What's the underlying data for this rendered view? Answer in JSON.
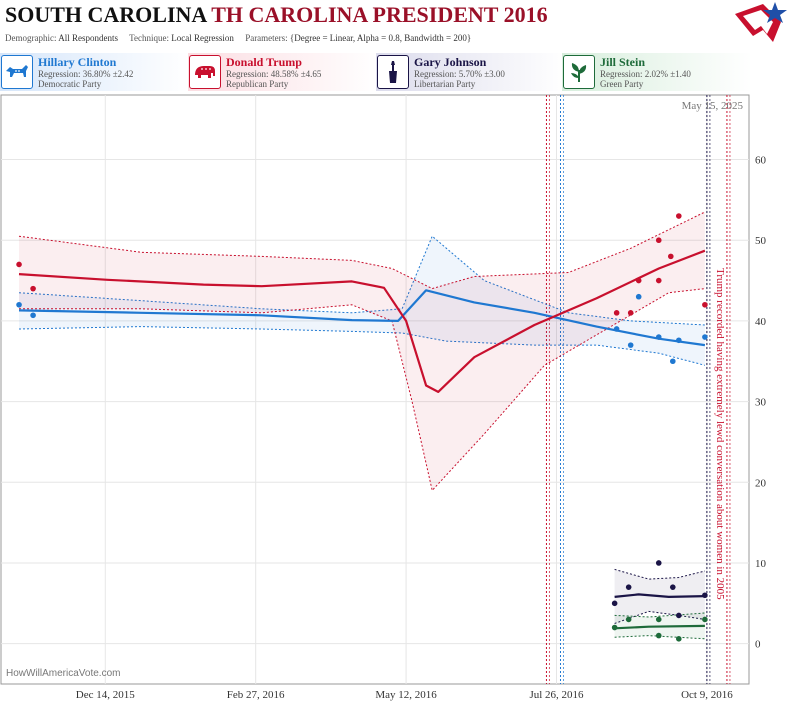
{
  "title": {
    "state": "SOUTH CAROLINA",
    "race": "TH CAROLINA PRESIDENT 2016"
  },
  "params": {
    "demographic_label": "Demographic:",
    "demographic": "All Respondents",
    "technique_label": "Technique:",
    "technique": "Local Regression",
    "parameters_label": "Parameters:",
    "parameters": "{Degree = Linear, Alpha = 0.8, Bandwidth = 200}"
  },
  "candidates": [
    {
      "name": "Hillary Clinton",
      "regression": "Regression: 36.80% ±2.42",
      "party": "Democratic Party",
      "color": "#1f78d1",
      "icon": "donkey-icon"
    },
    {
      "name": "Donald Trump",
      "regression": "Regression: 48.58% ±4.65",
      "party": "Republican Party",
      "color": "#c8102e",
      "icon": "elephant-icon"
    },
    {
      "name": "Gary Johnson",
      "regression": "Regression: 5.70% ±3.00",
      "party": "Libertarian Party",
      "color": "#1a1446",
      "icon": "liberty-torch-icon"
    },
    {
      "name": "Jill Stein",
      "regression": "Regression: 2.02% ±1.40",
      "party": "Green Party",
      "color": "#1e6b3a",
      "icon": "leaf-icon"
    }
  ],
  "datestamp": "May 15, 2025",
  "credit": "HowWillAmericaVote.com",
  "chart_data": {
    "type": "line",
    "x_ticks": [
      "Dec 14, 2015",
      "Feb 27, 2016",
      "May 12, 2016",
      "Jul 26, 2016",
      "Oct 9, 2016"
    ],
    "x_range": [
      "2015-10-23",
      "2016-10-30"
    ],
    "y_ticks": [
      0,
      10,
      20,
      30,
      40,
      50,
      60
    ],
    "ylim": [
      -5,
      68
    ],
    "grid": true,
    "series": [
      {
        "name": "Hillary Clinton",
        "color": "#1f78d1",
        "line": [
          [
            "2015-11-01",
            41.3
          ],
          [
            "2016-01-01",
            41.0
          ],
          [
            "2016-03-01",
            40.7
          ],
          [
            "2016-04-15",
            40.1
          ],
          [
            "2016-05-08",
            40.0
          ],
          [
            "2016-05-22",
            43.8
          ],
          [
            "2016-06-15",
            42.3
          ],
          [
            "2016-07-15",
            41.0
          ],
          [
            "2016-08-15",
            39.3
          ],
          [
            "2016-09-15",
            37.8
          ],
          [
            "2016-10-08",
            37.0
          ]
        ],
        "band_upper": [
          [
            "2015-11-01",
            43.5
          ],
          [
            "2016-01-01",
            42.5
          ],
          [
            "2016-03-01",
            41.5
          ],
          [
            "2016-04-15",
            41.0
          ],
          [
            "2016-05-10",
            41.5
          ],
          [
            "2016-05-25",
            50.5
          ],
          [
            "2016-06-20",
            45.0
          ],
          [
            "2016-08-01",
            41.0
          ],
          [
            "2016-09-01",
            40.0
          ],
          [
            "2016-10-08",
            39.5
          ]
        ],
        "band_lower": [
          [
            "2015-11-01",
            39.0
          ],
          [
            "2016-01-01",
            39.3
          ],
          [
            "2016-03-01",
            39.0
          ],
          [
            "2016-04-15",
            38.7
          ],
          [
            "2016-05-10",
            38.5
          ],
          [
            "2016-06-01",
            37.5
          ],
          [
            "2016-07-15",
            37.0
          ],
          [
            "2016-08-15",
            37.0
          ],
          [
            "2016-09-15",
            36.0
          ],
          [
            "2016-10-08",
            34.5
          ]
        ],
        "points": [
          [
            "2015-11-01",
            42
          ],
          [
            "2015-11-08",
            40.7
          ],
          [
            "2016-08-25",
            39
          ],
          [
            "2016-09-01",
            37
          ],
          [
            "2016-09-05",
            43
          ],
          [
            "2016-09-15",
            38
          ],
          [
            "2016-09-22",
            35
          ],
          [
            "2016-09-25",
            37.6
          ],
          [
            "2016-10-08",
            38
          ]
        ]
      },
      {
        "name": "Donald Trump",
        "color": "#c8102e",
        "line": [
          [
            "2015-11-01",
            45.8
          ],
          [
            "2015-12-15",
            45.1
          ],
          [
            "2016-02-01",
            44.5
          ],
          [
            "2016-03-01",
            44.3
          ],
          [
            "2016-04-15",
            44.9
          ],
          [
            "2016-05-01",
            44.1
          ],
          [
            "2016-05-12",
            40.0
          ],
          [
            "2016-05-22",
            32.0
          ],
          [
            "2016-05-28",
            31.2
          ],
          [
            "2016-06-15",
            35.5
          ],
          [
            "2016-07-15",
            39.5
          ],
          [
            "2016-08-15",
            42.8
          ],
          [
            "2016-09-15",
            46.5
          ],
          [
            "2016-10-08",
            48.7
          ]
        ],
        "band_upper": [
          [
            "2015-11-01",
            50.5
          ],
          [
            "2016-01-01",
            48.5
          ],
          [
            "2016-03-01",
            48.0
          ],
          [
            "2016-04-15",
            47.5
          ],
          [
            "2016-05-05",
            46.5
          ],
          [
            "2016-05-25",
            44.0
          ],
          [
            "2016-06-15",
            45.5
          ],
          [
            "2016-08-01",
            46.0
          ],
          [
            "2016-09-01",
            49.0
          ],
          [
            "2016-10-08",
            53.5
          ]
        ],
        "band_lower": [
          [
            "2015-11-01",
            41.5
          ],
          [
            "2016-01-01",
            41.5
          ],
          [
            "2016-03-01",
            41.0
          ],
          [
            "2016-04-15",
            42.0
          ],
          [
            "2016-05-05",
            40.0
          ],
          [
            "2016-05-15",
            30.0
          ],
          [
            "2016-05-25",
            19.0
          ],
          [
            "2016-06-20",
            26.0
          ],
          [
            "2016-07-20",
            34.5
          ],
          [
            "2016-08-20",
            39.0
          ],
          [
            "2016-09-20",
            43.5
          ],
          [
            "2016-10-08",
            44.0
          ]
        ],
        "points": [
          [
            "2015-11-01",
            47
          ],
          [
            "2015-11-08",
            44
          ],
          [
            "2016-08-25",
            41
          ],
          [
            "2016-09-01",
            41
          ],
          [
            "2016-09-05",
            45
          ],
          [
            "2016-09-15",
            50
          ],
          [
            "2016-09-15",
            45
          ],
          [
            "2016-09-21",
            48
          ],
          [
            "2016-09-25",
            53
          ],
          [
            "2016-10-08",
            42
          ]
        ]
      },
      {
        "name": "Gary Johnson",
        "color": "#1a1446",
        "line": [
          [
            "2016-08-24",
            5.8
          ],
          [
            "2016-09-05",
            6.1
          ],
          [
            "2016-09-20",
            5.8
          ],
          [
            "2016-10-08",
            5.9
          ]
        ],
        "band_upper": [
          [
            "2016-08-24",
            9.2
          ],
          [
            "2016-09-10",
            8.0
          ],
          [
            "2016-09-25",
            8.2
          ],
          [
            "2016-10-08",
            9.0
          ]
        ],
        "band_lower": [
          [
            "2016-08-24",
            2.5
          ],
          [
            "2016-09-10",
            4.0
          ],
          [
            "2016-09-25",
            3.5
          ],
          [
            "2016-10-08",
            3.0
          ]
        ],
        "points": [
          [
            "2016-08-24",
            5
          ],
          [
            "2016-08-31",
            7
          ],
          [
            "2016-09-15",
            10
          ],
          [
            "2016-09-22",
            7
          ],
          [
            "2016-09-25",
            3.5
          ],
          [
            "2016-10-08",
            6
          ]
        ]
      },
      {
        "name": "Jill Stein",
        "color": "#1e6b3a",
        "line": [
          [
            "2016-08-24",
            1.9
          ],
          [
            "2016-09-10",
            2.1
          ],
          [
            "2016-10-08",
            2.2
          ]
        ],
        "band_upper": [
          [
            "2016-08-24",
            3.5
          ],
          [
            "2016-09-10",
            3.3
          ],
          [
            "2016-10-08",
            3.8
          ]
        ],
        "band_lower": [
          [
            "2016-08-24",
            0.8
          ],
          [
            "2016-09-10",
            1.0
          ],
          [
            "2016-10-08",
            0.6
          ]
        ],
        "points": [
          [
            "2016-08-24",
            2
          ],
          [
            "2016-08-31",
            3
          ],
          [
            "2016-09-15",
            3
          ],
          [
            "2016-09-15",
            1
          ],
          [
            "2016-09-25",
            0.6
          ],
          [
            "2016-10-08",
            3
          ]
        ]
      }
    ],
    "annotation": {
      "text": "Trump recorded having extremely lewd conversation about women in 2005",
      "date": "2016-10-07",
      "color": "#c8102e"
    },
    "event_lines": [
      {
        "date": "2016-07-21",
        "color": "#c8102e"
      },
      {
        "date": "2016-07-28",
        "color": "#1f78d1"
      },
      {
        "date": "2016-10-09",
        "color": "#1a1446"
      },
      {
        "date": "2016-10-19",
        "color": "#c8102e"
      }
    ]
  }
}
